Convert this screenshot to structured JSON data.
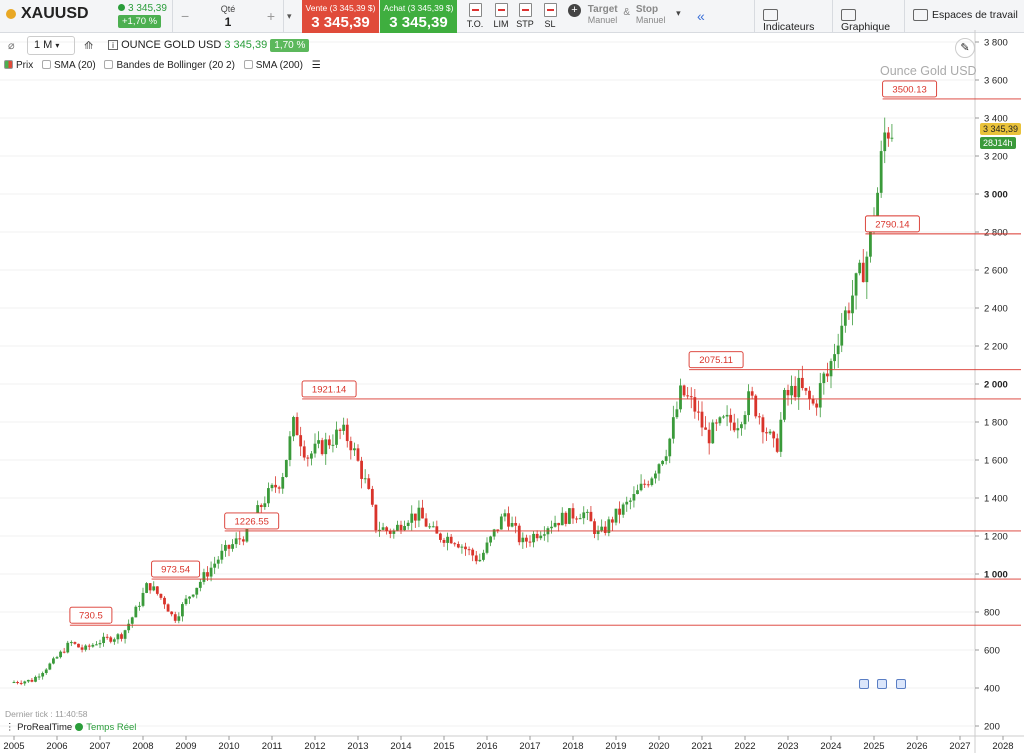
{
  "header": {
    "symbol": "XAUUSD",
    "last_price": "3 345,39",
    "change_pct": "+1,70 %",
    "qty_label": "Qté",
    "qty_value": "1",
    "sell_label": "Vente (3 345,39 $)",
    "sell_price": "3 345,39",
    "buy_label": "Achat (3 345,39 $)",
    "buy_price": "3 345,39",
    "order_types": [
      "T.O.",
      "LIM",
      "STP",
      "SL"
    ],
    "target_label": "Target",
    "target_sub": "Manuel",
    "amp": "&",
    "stop_label": "Stop",
    "stop_sub": "Manuel",
    "collapse": "«",
    "indicators_btn": "Indicateurs",
    "chart_btn": "Graphique",
    "workspace_btn": "Espaces de travail"
  },
  "toolbar2": {
    "timeframe": "1 M",
    "instrument": "OUNCE GOLD USD",
    "inst_price": "3 345,39",
    "inst_pct": "1,70 %"
  },
  "legend": {
    "price": "Prix",
    "sma20": "SMA (20)",
    "bollinger": "Bandes de Bollinger (20 2)",
    "sma200": "SMA (200)"
  },
  "watermark": "Ounce Gold USD",
  "price_badge": "3 345,39",
  "time_badge": "28J14h",
  "footer": {
    "last_tick": "Dernier tick : 11:40:58",
    "provider": "ProRealTime",
    "realtime": "Temps Réel"
  },
  "chart_data": {
    "type": "candlestick",
    "y_ticks": [
      "3 800",
      "3 600",
      "3 400",
      "3 200",
      "3 000",
      "2 800",
      "2 600",
      "2 400",
      "2 200",
      "2 000",
      "1 800",
      "1 600",
      "1 400",
      "1 200",
      "1 000",
      "800",
      "600",
      "400",
      "200"
    ],
    "y_tick_values": [
      3800,
      3600,
      3400,
      3200,
      3000,
      2800,
      2600,
      2400,
      2200,
      2000,
      1800,
      1600,
      1400,
      1200,
      1000,
      800,
      600,
      400,
      200
    ],
    "x_ticks": [
      "2005",
      "2006",
      "2007",
      "2008",
      "2009",
      "2010",
      "2011",
      "2012",
      "2013",
      "2014",
      "2015",
      "2016",
      "2017",
      "2018",
      "2019",
      "2020",
      "2021",
      "2022",
      "2023",
      "2024",
      "2025",
      "2026",
      "2027",
      "2028"
    ],
    "x_tick_years": [
      2005,
      2006,
      2007,
      2008,
      2009,
      2010,
      2011,
      2012,
      2013,
      2014,
      2015,
      2016,
      2017,
      2018,
      2019,
      2020,
      2021,
      2022,
      2023,
      2024,
      2025,
      2026,
      2027,
      2028
    ],
    "levels": [
      {
        "label": "730.5",
        "value": 730.5,
        "year": 2006.3
      },
      {
        "label": "973.54",
        "value": 973.54,
        "year": 2008.2
      },
      {
        "label": "1226.55",
        "value": 1226.55,
        "year": 2009.9
      },
      {
        "label": "1921.14",
        "value": 1921.14,
        "year": 2011.7
      },
      {
        "label": "2075.11",
        "value": 2075.11,
        "year": 2020.7
      },
      {
        "label": "2790.14",
        "value": 2790.14,
        "year": 2024.8
      },
      {
        "label": "3500.13",
        "value": 3500.13,
        "year": 2025.2
      }
    ],
    "path": [
      [
        2005.0,
        430
      ],
      [
        2005.5,
        440
      ],
      [
        2006.0,
        540
      ],
      [
        2006.4,
        640
      ],
      [
        2006.7,
        600
      ],
      [
        2007.0,
        640
      ],
      [
        2007.6,
        680
      ],
      [
        2007.9,
        800
      ],
      [
        2008.2,
        950
      ],
      [
        2008.6,
        850
      ],
      [
        2008.8,
        760
      ],
      [
        2009.2,
        900
      ],
      [
        2009.9,
        1100
      ],
      [
        2010.5,
        1220
      ],
      [
        2010.9,
        1390
      ],
      [
        2011.3,
        1500
      ],
      [
        2011.6,
        1800
      ],
      [
        2011.9,
        1620
      ],
      [
        2012.3,
        1680
      ],
      [
        2012.7,
        1750
      ],
      [
        2012.9,
        1700
      ],
      [
        2013.3,
        1450
      ],
      [
        2013.5,
        1250
      ],
      [
        2013.9,
        1220
      ],
      [
        2014.2,
        1300
      ],
      [
        2014.5,
        1310
      ],
      [
        2014.9,
        1200
      ],
      [
        2015.3,
        1190
      ],
      [
        2015.9,
        1070
      ],
      [
        2016.5,
        1320
      ],
      [
        2016.9,
        1160
      ],
      [
        2017.5,
        1260
      ],
      [
        2017.9,
        1300
      ],
      [
        2018.3,
        1330
      ],
      [
        2018.7,
        1200
      ],
      [
        2019.0,
        1290
      ],
      [
        2019.5,
        1400
      ],
      [
        2019.9,
        1520
      ],
      [
        2020.3,
        1680
      ],
      [
        2020.6,
        1960
      ],
      [
        2020.9,
        1880
      ],
      [
        2021.2,
        1720
      ],
      [
        2021.6,
        1800
      ],
      [
        2021.9,
        1800
      ],
      [
        2022.2,
        1930
      ],
      [
        2022.5,
        1800
      ],
      [
        2022.8,
        1640
      ],
      [
        2023.0,
        1920
      ],
      [
        2023.3,
        1990
      ],
      [
        2023.7,
        1880
      ],
      [
        2023.9,
        2030
      ],
      [
        2024.0,
        2040
      ],
      [
        2024.3,
        2300
      ],
      [
        2024.6,
        2480
      ],
      [
        2024.9,
        2650
      ],
      [
        2025.0,
        2800
      ],
      [
        2025.2,
        3050
      ],
      [
        2025.3,
        3300
      ],
      [
        2025.4,
        3345
      ]
    ]
  }
}
